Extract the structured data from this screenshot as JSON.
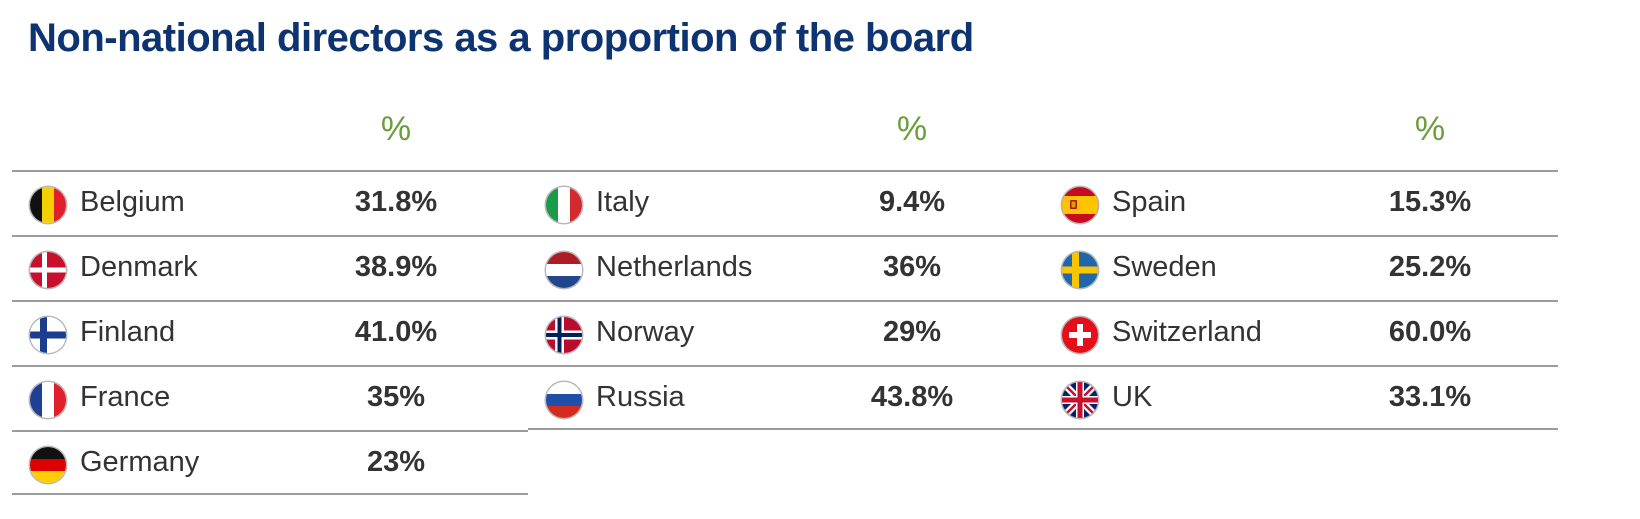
{
  "title": "Non-national directors as a proportion of the board",
  "colors": {
    "title": "#0d3470",
    "header": "#6a9e3c",
    "text": "#333333",
    "rule": "#9c9c9c"
  },
  "chart_data": {
    "type": "table",
    "title": "Non-national directors as a proportion of the board",
    "column_header": "%",
    "columns": [
      {
        "header": "%",
        "rows": [
          {
            "country": "Belgium",
            "value": "31.8%",
            "flag": "belgium-flag-icon"
          },
          {
            "country": "Denmark",
            "value": "38.9%",
            "flag": "denmark-flag-icon"
          },
          {
            "country": "Finland",
            "value": "41.0%",
            "flag": "finland-flag-icon"
          },
          {
            "country": "France",
            "value": "35%",
            "flag": "france-flag-icon"
          },
          {
            "country": "Germany",
            "value": "23%",
            "flag": "germany-flag-icon"
          }
        ]
      },
      {
        "header": "%",
        "rows": [
          {
            "country": "Italy",
            "value": "9.4%",
            "flag": "italy-flag-icon"
          },
          {
            "country": "Netherlands",
            "value": "36%",
            "flag": "netherlands-flag-icon"
          },
          {
            "country": "Norway",
            "value": "29%",
            "flag": "norway-flag-icon"
          },
          {
            "country": "Russia",
            "value": "43.8%",
            "flag": "russia-flag-icon"
          }
        ]
      },
      {
        "header": "%",
        "rows": [
          {
            "country": "Spain",
            "value": "15.3%",
            "flag": "spain-flag-icon"
          },
          {
            "country": "Sweden",
            "value": "25.2%",
            "flag": "sweden-flag-icon"
          },
          {
            "country": "Switzerland",
            "value": "60.0%",
            "flag": "switzerland-flag-icon"
          },
          {
            "country": "UK",
            "value": "33.1%",
            "flag": "uk-flag-icon"
          }
        ]
      }
    ]
  }
}
